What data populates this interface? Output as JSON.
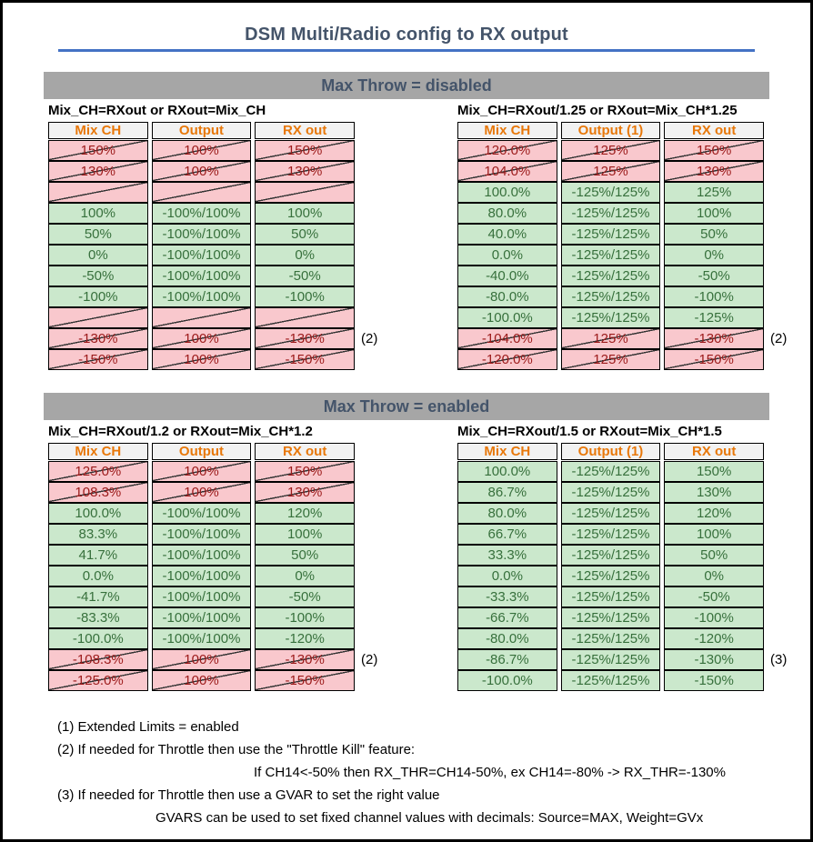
{
  "title": "DSM Multi/Radio config to RX output",
  "colors": {
    "accent_rule": "#4472C4",
    "section_bar_bg": "#A6A6A6",
    "heading_text": "#44546A",
    "header_bg": "#F2F2F2",
    "header_text": "#E8780A",
    "good_bg": "#CBE8CC",
    "good_text": "#37703C",
    "bad_bg": "#F9C8CD",
    "bad_text": "#9C1A1A"
  },
  "sections": [
    {
      "header": "Max Throw = disabled",
      "tables": [
        {
          "caption": "Mix_CH=RXout or RXout=Mix_CH",
          "columns": [
            "Mix CH",
            "Output",
            "RX out"
          ],
          "rows": [
            {
              "cells": [
                "150%",
                "100%",
                "150%"
              ],
              "state": "invalid"
            },
            {
              "cells": [
                "130%",
                "100%",
                "130%"
              ],
              "state": "invalid"
            },
            {
              "cells": [
                "",
                "",
                ""
              ],
              "state": "invalid"
            },
            {
              "cells": [
                "100%",
                "-100%/100%",
                "100%"
              ],
              "state": "valid"
            },
            {
              "cells": [
                "50%",
                "-100%/100%",
                "50%"
              ],
              "state": "valid"
            },
            {
              "cells": [
                "0%",
                "-100%/100%",
                "0%"
              ],
              "state": "valid"
            },
            {
              "cells": [
                "-50%",
                "-100%/100%",
                "-50%"
              ],
              "state": "valid"
            },
            {
              "cells": [
                "-100%",
                "-100%/100%",
                "-100%"
              ],
              "state": "valid"
            },
            {
              "cells": [
                "",
                "",
                ""
              ],
              "state": "invalid"
            },
            {
              "cells": [
                "-130%",
                "100%",
                "-130%"
              ],
              "state": "invalid",
              "note": "(2)"
            },
            {
              "cells": [
                "-150%",
                "100%",
                "-150%"
              ],
              "state": "invalid"
            }
          ]
        },
        {
          "caption": "Mix_CH=RXout/1.25 or RXout=Mix_CH*1.25",
          "columns": [
            "Mix CH",
            "Output (1)",
            "RX out"
          ],
          "rows": [
            {
              "cells": [
                "120.0%",
                "125%",
                "150%"
              ],
              "state": "invalid"
            },
            {
              "cells": [
                "104.0%",
                "125%",
                "130%"
              ],
              "state": "invalid"
            },
            {
              "cells": [
                "100.0%",
                "-125%/125%",
                "125%"
              ],
              "state": "valid"
            },
            {
              "cells": [
                "80.0%",
                "-125%/125%",
                "100%"
              ],
              "state": "valid"
            },
            {
              "cells": [
                "40.0%",
                "-125%/125%",
                "50%"
              ],
              "state": "valid"
            },
            {
              "cells": [
                "0.0%",
                "-125%/125%",
                "0%"
              ],
              "state": "valid"
            },
            {
              "cells": [
                "-40.0%",
                "-125%/125%",
                "-50%"
              ],
              "state": "valid"
            },
            {
              "cells": [
                "-80.0%",
                "-125%/125%",
                "-100%"
              ],
              "state": "valid"
            },
            {
              "cells": [
                "-100.0%",
                "-125%/125%",
                "-125%"
              ],
              "state": "valid"
            },
            {
              "cells": [
                "-104.0%",
                "125%",
                "-130%"
              ],
              "state": "invalid",
              "note": "(2)"
            },
            {
              "cells": [
                "-120.0%",
                "125%",
                "-150%"
              ],
              "state": "invalid"
            }
          ]
        }
      ]
    },
    {
      "header": "Max Throw = enabled",
      "tables": [
        {
          "caption": "Mix_CH=RXout/1.2 or RXout=Mix_CH*1.2",
          "columns": [
            "Mix CH",
            "Output",
            "RX out"
          ],
          "rows": [
            {
              "cells": [
                "125.0%",
                "100%",
                "150%"
              ],
              "state": "invalid"
            },
            {
              "cells": [
                "108.3%",
                "100%",
                "130%"
              ],
              "state": "invalid"
            },
            {
              "cells": [
                "100.0%",
                "-100%/100%",
                "120%"
              ],
              "state": "valid"
            },
            {
              "cells": [
                "83.3%",
                "-100%/100%",
                "100%"
              ],
              "state": "valid"
            },
            {
              "cells": [
                "41.7%",
                "-100%/100%",
                "50%"
              ],
              "state": "valid"
            },
            {
              "cells": [
                "0.0%",
                "-100%/100%",
                "0%"
              ],
              "state": "valid"
            },
            {
              "cells": [
                "-41.7%",
                "-100%/100%",
                "-50%"
              ],
              "state": "valid"
            },
            {
              "cells": [
                "-83.3%",
                "-100%/100%",
                "-100%"
              ],
              "state": "valid"
            },
            {
              "cells": [
                "-100.0%",
                "-100%/100%",
                "-120%"
              ],
              "state": "valid"
            },
            {
              "cells": [
                "-108.3%",
                "100%",
                "-130%"
              ],
              "state": "invalid",
              "note": "(2)"
            },
            {
              "cells": [
                "-125.0%",
                "100%",
                "-150%"
              ],
              "state": "invalid"
            }
          ]
        },
        {
          "caption": "Mix_CH=RXout/1.5 or RXout=Mix_CH*1.5",
          "columns": [
            "Mix CH",
            "Output (1)",
            "RX out"
          ],
          "rows": [
            {
              "cells": [
                "100.0%",
                "-125%/125%",
                "150%"
              ],
              "state": "valid"
            },
            {
              "cells": [
                "86.7%",
                "-125%/125%",
                "130%"
              ],
              "state": "valid"
            },
            {
              "cells": [
                "80.0%",
                "-125%/125%",
                "120%"
              ],
              "state": "valid"
            },
            {
              "cells": [
                "66.7%",
                "-125%/125%",
                "100%"
              ],
              "state": "valid"
            },
            {
              "cells": [
                "33.3%",
                "-125%/125%",
                "50%"
              ],
              "state": "valid"
            },
            {
              "cells": [
                "0.0%",
                "-125%/125%",
                "0%"
              ],
              "state": "valid"
            },
            {
              "cells": [
                "-33.3%",
                "-125%/125%",
                "-50%"
              ],
              "state": "valid"
            },
            {
              "cells": [
                "-66.7%",
                "-125%/125%",
                "-100%"
              ],
              "state": "valid"
            },
            {
              "cells": [
                "-80.0%",
                "-125%/125%",
                "-120%"
              ],
              "state": "valid"
            },
            {
              "cells": [
                "-86.7%",
                "-125%/125%",
                "-130%"
              ],
              "state": "valid",
              "note": "(3)"
            },
            {
              "cells": [
                "-100.0%",
                "-125%/125%",
                "-150%"
              ],
              "state": "valid"
            }
          ]
        }
      ]
    }
  ],
  "footnotes": [
    {
      "text": "(1) Extended Limits = enabled",
      "indent": 0
    },
    {
      "text": "(2) If needed for Throttle then use the \"Throttle Kill\" feature:",
      "indent": 0
    },
    {
      "text": "If CH14<-50% then RX_THR=CH14-50%, ex CH14=-80% -> RX_THR=-130%",
      "indent": 1
    },
    {
      "text": "(3) If needed for Throttle then use a GVAR to set the right value",
      "indent": 0
    },
    {
      "text": "GVARS can be used to set fixed channel values with decimals: Source=MAX, Weight=GVx",
      "indent": 2
    }
  ]
}
